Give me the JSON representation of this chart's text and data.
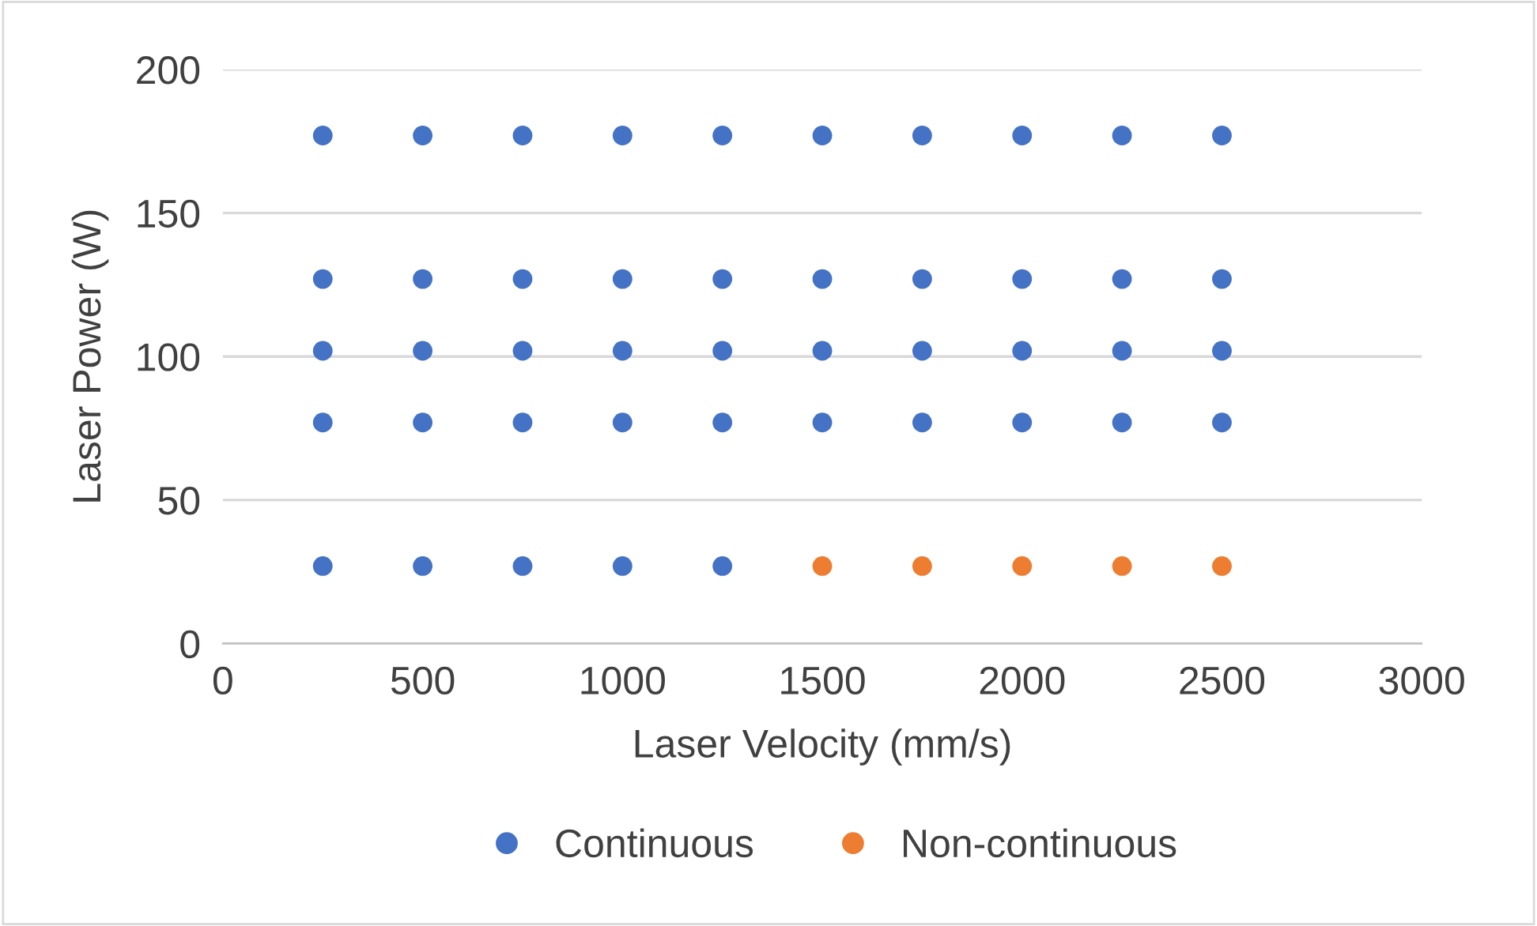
{
  "chart_data": {
    "type": "scatter",
    "xlabel": "Laser Velocity (mm/s)",
    "ylabel": "Laser Power (W)",
    "xlim": [
      0,
      3000
    ],
    "xticks": [
      0,
      500,
      1000,
      1500,
      2000,
      2500,
      3000
    ],
    "ylim": [
      0,
      200
    ],
    "yticks": [
      0,
      50,
      100,
      150,
      200
    ],
    "grid": "y",
    "legend": "bottom",
    "marker": "circle",
    "series": [
      {
        "name": "Continuous",
        "color": "#4472c4",
        "x": [
          250,
          500,
          750,
          1000,
          1250,
          1500,
          1750,
          2000,
          2250,
          2500,
          250,
          500,
          750,
          1000,
          1250,
          1500,
          1750,
          2000,
          2250,
          2500,
          250,
          500,
          750,
          1000,
          1250,
          1500,
          1750,
          2000,
          2250,
          2500,
          250,
          500,
          750,
          1000,
          1250,
          1500,
          1750,
          2000,
          2250,
          2500,
          250,
          500,
          750,
          1000,
          1250
        ],
        "values": [
          177,
          177,
          177,
          177,
          177,
          177,
          177,
          177,
          177,
          177,
          127,
          127,
          127,
          127,
          127,
          127,
          127,
          127,
          127,
          127,
          102,
          102,
          102,
          102,
          102,
          102,
          102,
          102,
          102,
          102,
          77,
          77,
          77,
          77,
          77,
          77,
          77,
          77,
          77,
          77,
          27,
          27,
          27,
          27,
          27
        ]
      },
      {
        "name": "Non-continuous",
        "color": "#ed7d31",
        "x": [
          1500,
          1750,
          2000,
          2250,
          2500
        ],
        "values": [
          27,
          27,
          27,
          27,
          27
        ]
      }
    ]
  }
}
